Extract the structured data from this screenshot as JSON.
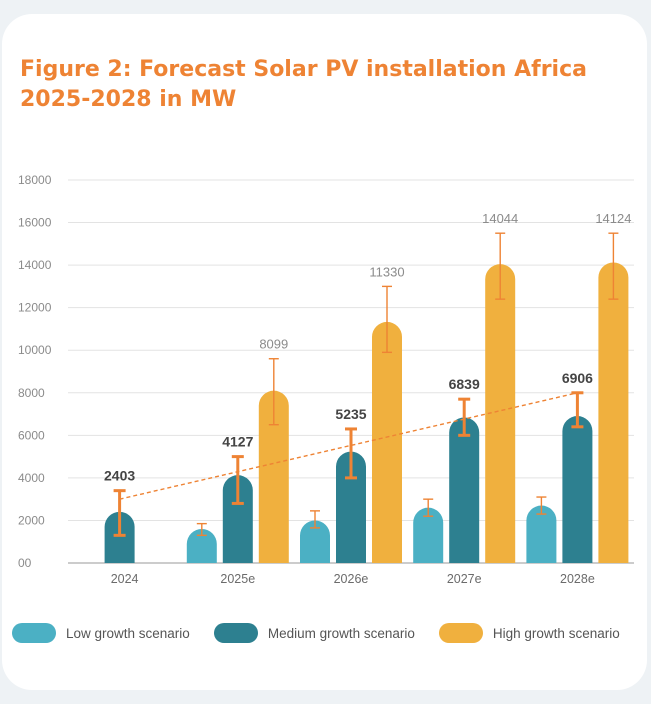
{
  "title_line1": "Figure 2: Forecast Solar PV installation Africa",
  "title_line2": "2025-2028 in MW",
  "colors": {
    "low": "#4bb0c4",
    "medium": "#2d8090",
    "high": "#f0b03e",
    "error": "#ee8334",
    "trend": "#ee8334",
    "title": "#ee8334"
  },
  "legend": [
    {
      "label": "Low growth scenario",
      "color": "#4bb0c4"
    },
    {
      "label": "Medium growth scenario",
      "color": "#2d8090"
    },
    {
      "label": "High growth scenario",
      "color": "#f0b03e"
    }
  ],
  "chart_data": {
    "type": "bar",
    "categories": [
      "2024",
      "2025e",
      "2026e",
      "2027e",
      "2028e"
    ],
    "y_tick_labels": [
      "00",
      "2000",
      "4000",
      "6000",
      "8000",
      "10000",
      "12000",
      "14000",
      "16000",
      "18000"
    ],
    "ylim": [
      0,
      18000
    ],
    "grid": true,
    "legend_position": "bottom",
    "series": [
      {
        "name": "Low growth scenario",
        "values": [
          null,
          1600,
          2000,
          2600,
          2700
        ],
        "error_low": [
          null,
          1300,
          1650,
          2200,
          2300
        ],
        "error_high": [
          null,
          1850,
          2450,
          3000,
          3100
        ]
      },
      {
        "name": "Medium growth scenario",
        "values": [
          2403,
          4127,
          5235,
          6839,
          6906
        ],
        "labels": [
          "2403",
          "4127",
          "5235",
          "6839",
          "6906"
        ],
        "error_low": [
          1300,
          2800,
          4000,
          6000,
          6400
        ],
        "error_high": [
          3400,
          5000,
          6300,
          7700,
          8000
        ]
      },
      {
        "name": "High growth scenario",
        "values": [
          null,
          8099,
          11330,
          14044,
          14124
        ],
        "labels": [
          null,
          "8099",
          "11330",
          "14044",
          "14124"
        ],
        "error_low": [
          null,
          6500,
          9900,
          12400,
          12400
        ],
        "error_high": [
          null,
          9600,
          13000,
          15500,
          15500
        ]
      }
    ],
    "trend_line": {
      "from_value": 3000,
      "to_value": 8000
    }
  }
}
